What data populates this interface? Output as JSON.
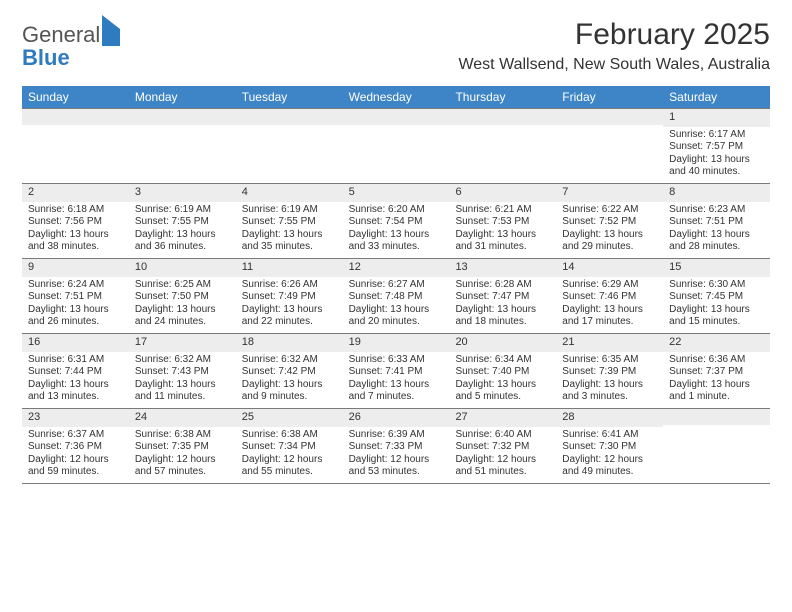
{
  "brand": {
    "part1": "General",
    "part2": "Blue"
  },
  "title": "February 2025",
  "location": "West Wallsend, New South Wales, Australia",
  "daynames": [
    "Sunday",
    "Monday",
    "Tuesday",
    "Wednesday",
    "Thursday",
    "Friday",
    "Saturday"
  ],
  "colors": {
    "header_bg": "#3d85c6",
    "header_text": "#ffffff",
    "daynum_bg": "#ededed",
    "border": "#7a7a7a",
    "brand_blue": "#2f7bbf",
    "text": "#333333"
  },
  "weeks": [
    [
      {
        "n": "",
        "sr": "",
        "ss": "",
        "dl": ""
      },
      {
        "n": "",
        "sr": "",
        "ss": "",
        "dl": ""
      },
      {
        "n": "",
        "sr": "",
        "ss": "",
        "dl": ""
      },
      {
        "n": "",
        "sr": "",
        "ss": "",
        "dl": ""
      },
      {
        "n": "",
        "sr": "",
        "ss": "",
        "dl": ""
      },
      {
        "n": "",
        "sr": "",
        "ss": "",
        "dl": ""
      },
      {
        "n": "1",
        "sr": "Sunrise: 6:17 AM",
        "ss": "Sunset: 7:57 PM",
        "dl": "Daylight: 13 hours and 40 minutes."
      }
    ],
    [
      {
        "n": "2",
        "sr": "Sunrise: 6:18 AM",
        "ss": "Sunset: 7:56 PM",
        "dl": "Daylight: 13 hours and 38 minutes."
      },
      {
        "n": "3",
        "sr": "Sunrise: 6:19 AM",
        "ss": "Sunset: 7:55 PM",
        "dl": "Daylight: 13 hours and 36 minutes."
      },
      {
        "n": "4",
        "sr": "Sunrise: 6:19 AM",
        "ss": "Sunset: 7:55 PM",
        "dl": "Daylight: 13 hours and 35 minutes."
      },
      {
        "n": "5",
        "sr": "Sunrise: 6:20 AM",
        "ss": "Sunset: 7:54 PM",
        "dl": "Daylight: 13 hours and 33 minutes."
      },
      {
        "n": "6",
        "sr": "Sunrise: 6:21 AM",
        "ss": "Sunset: 7:53 PM",
        "dl": "Daylight: 13 hours and 31 minutes."
      },
      {
        "n": "7",
        "sr": "Sunrise: 6:22 AM",
        "ss": "Sunset: 7:52 PM",
        "dl": "Daylight: 13 hours and 29 minutes."
      },
      {
        "n": "8",
        "sr": "Sunrise: 6:23 AM",
        "ss": "Sunset: 7:51 PM",
        "dl": "Daylight: 13 hours and 28 minutes."
      }
    ],
    [
      {
        "n": "9",
        "sr": "Sunrise: 6:24 AM",
        "ss": "Sunset: 7:51 PM",
        "dl": "Daylight: 13 hours and 26 minutes."
      },
      {
        "n": "10",
        "sr": "Sunrise: 6:25 AM",
        "ss": "Sunset: 7:50 PM",
        "dl": "Daylight: 13 hours and 24 minutes."
      },
      {
        "n": "11",
        "sr": "Sunrise: 6:26 AM",
        "ss": "Sunset: 7:49 PM",
        "dl": "Daylight: 13 hours and 22 minutes."
      },
      {
        "n": "12",
        "sr": "Sunrise: 6:27 AM",
        "ss": "Sunset: 7:48 PM",
        "dl": "Daylight: 13 hours and 20 minutes."
      },
      {
        "n": "13",
        "sr": "Sunrise: 6:28 AM",
        "ss": "Sunset: 7:47 PM",
        "dl": "Daylight: 13 hours and 18 minutes."
      },
      {
        "n": "14",
        "sr": "Sunrise: 6:29 AM",
        "ss": "Sunset: 7:46 PM",
        "dl": "Daylight: 13 hours and 17 minutes."
      },
      {
        "n": "15",
        "sr": "Sunrise: 6:30 AM",
        "ss": "Sunset: 7:45 PM",
        "dl": "Daylight: 13 hours and 15 minutes."
      }
    ],
    [
      {
        "n": "16",
        "sr": "Sunrise: 6:31 AM",
        "ss": "Sunset: 7:44 PM",
        "dl": "Daylight: 13 hours and 13 minutes."
      },
      {
        "n": "17",
        "sr": "Sunrise: 6:32 AM",
        "ss": "Sunset: 7:43 PM",
        "dl": "Daylight: 13 hours and 11 minutes."
      },
      {
        "n": "18",
        "sr": "Sunrise: 6:32 AM",
        "ss": "Sunset: 7:42 PM",
        "dl": "Daylight: 13 hours and 9 minutes."
      },
      {
        "n": "19",
        "sr": "Sunrise: 6:33 AM",
        "ss": "Sunset: 7:41 PM",
        "dl": "Daylight: 13 hours and 7 minutes."
      },
      {
        "n": "20",
        "sr": "Sunrise: 6:34 AM",
        "ss": "Sunset: 7:40 PM",
        "dl": "Daylight: 13 hours and 5 minutes."
      },
      {
        "n": "21",
        "sr": "Sunrise: 6:35 AM",
        "ss": "Sunset: 7:39 PM",
        "dl": "Daylight: 13 hours and 3 minutes."
      },
      {
        "n": "22",
        "sr": "Sunrise: 6:36 AM",
        "ss": "Sunset: 7:37 PM",
        "dl": "Daylight: 13 hours and 1 minute."
      }
    ],
    [
      {
        "n": "23",
        "sr": "Sunrise: 6:37 AM",
        "ss": "Sunset: 7:36 PM",
        "dl": "Daylight: 12 hours and 59 minutes."
      },
      {
        "n": "24",
        "sr": "Sunrise: 6:38 AM",
        "ss": "Sunset: 7:35 PM",
        "dl": "Daylight: 12 hours and 57 minutes."
      },
      {
        "n": "25",
        "sr": "Sunrise: 6:38 AM",
        "ss": "Sunset: 7:34 PM",
        "dl": "Daylight: 12 hours and 55 minutes."
      },
      {
        "n": "26",
        "sr": "Sunrise: 6:39 AM",
        "ss": "Sunset: 7:33 PM",
        "dl": "Daylight: 12 hours and 53 minutes."
      },
      {
        "n": "27",
        "sr": "Sunrise: 6:40 AM",
        "ss": "Sunset: 7:32 PM",
        "dl": "Daylight: 12 hours and 51 minutes."
      },
      {
        "n": "28",
        "sr": "Sunrise: 6:41 AM",
        "ss": "Sunset: 7:30 PM",
        "dl": "Daylight: 12 hours and 49 minutes."
      },
      {
        "n": "",
        "sr": "",
        "ss": "",
        "dl": ""
      }
    ]
  ]
}
